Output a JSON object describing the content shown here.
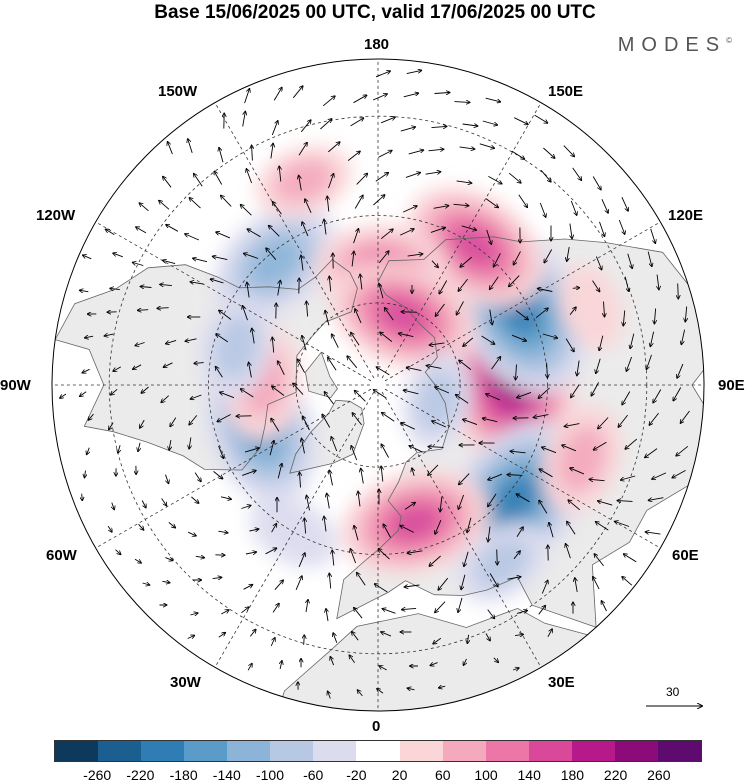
{
  "title": "Base 15/06/2025 00 UTC, valid 17/06/2025 00 UTC",
  "brand": {
    "text": "MODES",
    "mark": "©"
  },
  "longitude_labels": {
    "lon_180": "180",
    "lon_150e": "150E",
    "lon_120e": "120E",
    "lon_90e": "90E",
    "lon_60e": "60E",
    "lon_30e": "30E",
    "lon_0": "0",
    "lon_30w": "30W",
    "lon_60w": "60W",
    "lon_90w": "90W",
    "lon_120w": "120W",
    "lon_150w": "150W"
  },
  "reference_vector": {
    "label": "30"
  },
  "colorbar": {
    "tick_labels": [
      "-260",
      "-220",
      "-180",
      "-140",
      "-100",
      "-60",
      "-20",
      "20",
      "60",
      "100",
      "140",
      "180",
      "220",
      "260"
    ],
    "colors": [
      "#0d3a5c",
      "#1a5f8f",
      "#2f7db4",
      "#5a9cc9",
      "#8bb4d8",
      "#b7c8e4",
      "#dcdcef",
      "#ffffff",
      "#fad6d8",
      "#f4a9bc",
      "#ec76a6",
      "#d9489a",
      "#b8198a",
      "#8c0a7a",
      "#5e0a6e"
    ]
  },
  "colors": {
    "land": "#ebebeb",
    "grid": "#333333",
    "coast": "#666666"
  },
  "map": {
    "projection": "north-polar-stereographic",
    "anomalies": [
      {
        "lon": 95,
        "lat": 58,
        "value": 230
      },
      {
        "lon": 118,
        "lat": 52,
        "value": -200
      },
      {
        "lon": 50,
        "lat": 48,
        "value": -200
      },
      {
        "lon": 145,
        "lat": 50,
        "value": 150
      },
      {
        "lon": 15,
        "lat": 56,
        "value": 150
      },
      {
        "lon": -70,
        "lat": 60,
        "value": -160
      },
      {
        "lon": -140,
        "lat": 52,
        "value": -130
      },
      {
        "lon": 178,
        "lat": 62,
        "value": 120
      },
      {
        "lon": 160,
        "lat": 72,
        "value": 150
      },
      {
        "lon": -92,
        "lat": 62,
        "value": 90
      },
      {
        "lon": 75,
        "lat": 75,
        "value": -60
      },
      {
        "lon": -105,
        "lat": 55,
        "value": -70
      },
      {
        "lon": 35,
        "lat": 40,
        "value": -60
      },
      {
        "lon": 70,
        "lat": 40,
        "value": 80
      },
      {
        "lon": -160,
        "lat": 40,
        "value": 60
      },
      {
        "lon": -30,
        "lat": 50,
        "value": -50
      },
      {
        "lon": 110,
        "lat": 38,
        "value": 40
      }
    ]
  }
}
